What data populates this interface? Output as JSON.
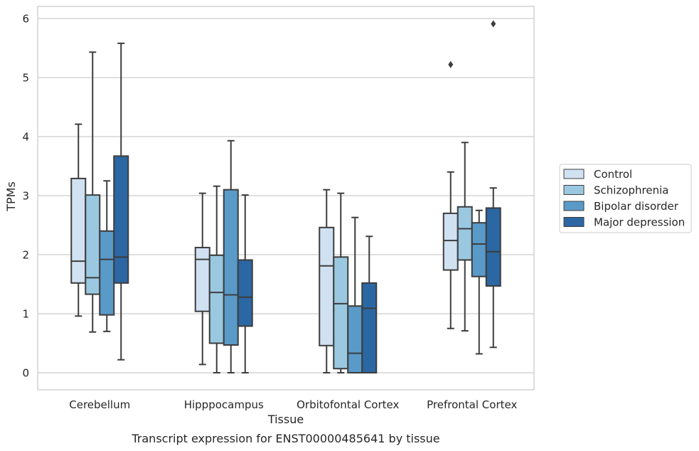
{
  "chart_data": {
    "type": "box",
    "caption": "Transcript expression for ENST00000485641 by tissue",
    "xlabel": "Tissue",
    "ylabel": "TPMs",
    "ylim": [
      -0.28,
      6.2
    ],
    "yticks": [
      0,
      1,
      2,
      3,
      4,
      5,
      6
    ],
    "grid": true,
    "legend_position": "right",
    "categories": [
      "Cerebellum",
      "Hipppocampus",
      "Orbitofontal Cortex",
      "Prefrontal Cortex"
    ],
    "series": [
      {
        "name": "Control",
        "color": "#d0e1f2",
        "boxes": [
          {
            "whisker_low": 0.96,
            "q1": 1.52,
            "median": 1.89,
            "q3": 3.29,
            "whisker_high": 4.21,
            "outliers": []
          },
          {
            "whisker_low": 0.14,
            "q1": 1.04,
            "median": 1.92,
            "q3": 2.12,
            "whisker_high": 3.04,
            "outliers": []
          },
          {
            "whisker_low": 0.0,
            "q1": 0.46,
            "median": 1.81,
            "q3": 2.46,
            "whisker_high": 3.1,
            "outliers": []
          },
          {
            "whisker_low": 0.75,
            "q1": 1.74,
            "median": 2.24,
            "q3": 2.7,
            "whisker_high": 3.4,
            "outliers": [
              5.22
            ]
          }
        ]
      },
      {
        "name": "Schizophrenia",
        "color": "#9ac8e0",
        "boxes": [
          {
            "whisker_low": 0.69,
            "q1": 1.33,
            "median": 1.61,
            "q3": 3.01,
            "whisker_high": 5.43,
            "outliers": []
          },
          {
            "whisker_low": 0.0,
            "q1": 0.5,
            "median": 1.36,
            "q3": 1.99,
            "whisker_high": 3.16,
            "outliers": []
          },
          {
            "whisker_low": 0.0,
            "q1": 0.07,
            "median": 1.17,
            "q3": 1.96,
            "whisker_high": 3.04,
            "outliers": []
          },
          {
            "whisker_low": 0.71,
            "q1": 1.91,
            "median": 2.44,
            "q3": 2.81,
            "whisker_high": 3.9,
            "outliers": []
          }
        ]
      },
      {
        "name": "Bipolar disorder",
        "color": "#5a9ac8",
        "boxes": [
          {
            "whisker_low": 0.7,
            "q1": 0.98,
            "median": 1.92,
            "q3": 2.4,
            "whisker_high": 3.25,
            "outliers": []
          },
          {
            "whisker_low": 0.0,
            "q1": 0.47,
            "median": 1.32,
            "q3": 3.1,
            "whisker_high": 3.93,
            "outliers": []
          },
          {
            "whisker_low": 0.0,
            "q1": 0.0,
            "median": 0.33,
            "q3": 1.13,
            "whisker_high": 2.63,
            "outliers": []
          },
          {
            "whisker_low": 0.32,
            "q1": 1.63,
            "median": 2.18,
            "q3": 2.54,
            "whisker_high": 2.75,
            "outliers": []
          }
        ]
      },
      {
        "name": "Major depression",
        "color": "#2b67a3",
        "boxes": [
          {
            "whisker_low": 0.22,
            "q1": 1.52,
            "median": 1.96,
            "q3": 3.67,
            "whisker_high": 5.58,
            "outliers": []
          },
          {
            "whisker_low": 0.0,
            "q1": 0.79,
            "median": 1.28,
            "q3": 1.91,
            "whisker_high": 3.01,
            "outliers": []
          },
          {
            "whisker_low": 0.0,
            "q1": 0.0,
            "median": 1.09,
            "q3": 1.52,
            "whisker_high": 2.31,
            "outliers": []
          },
          {
            "whisker_low": 0.43,
            "q1": 1.47,
            "median": 2.05,
            "q3": 2.79,
            "whisker_high": 3.13,
            "outliers": [
              5.91
            ]
          }
        ]
      }
    ]
  }
}
